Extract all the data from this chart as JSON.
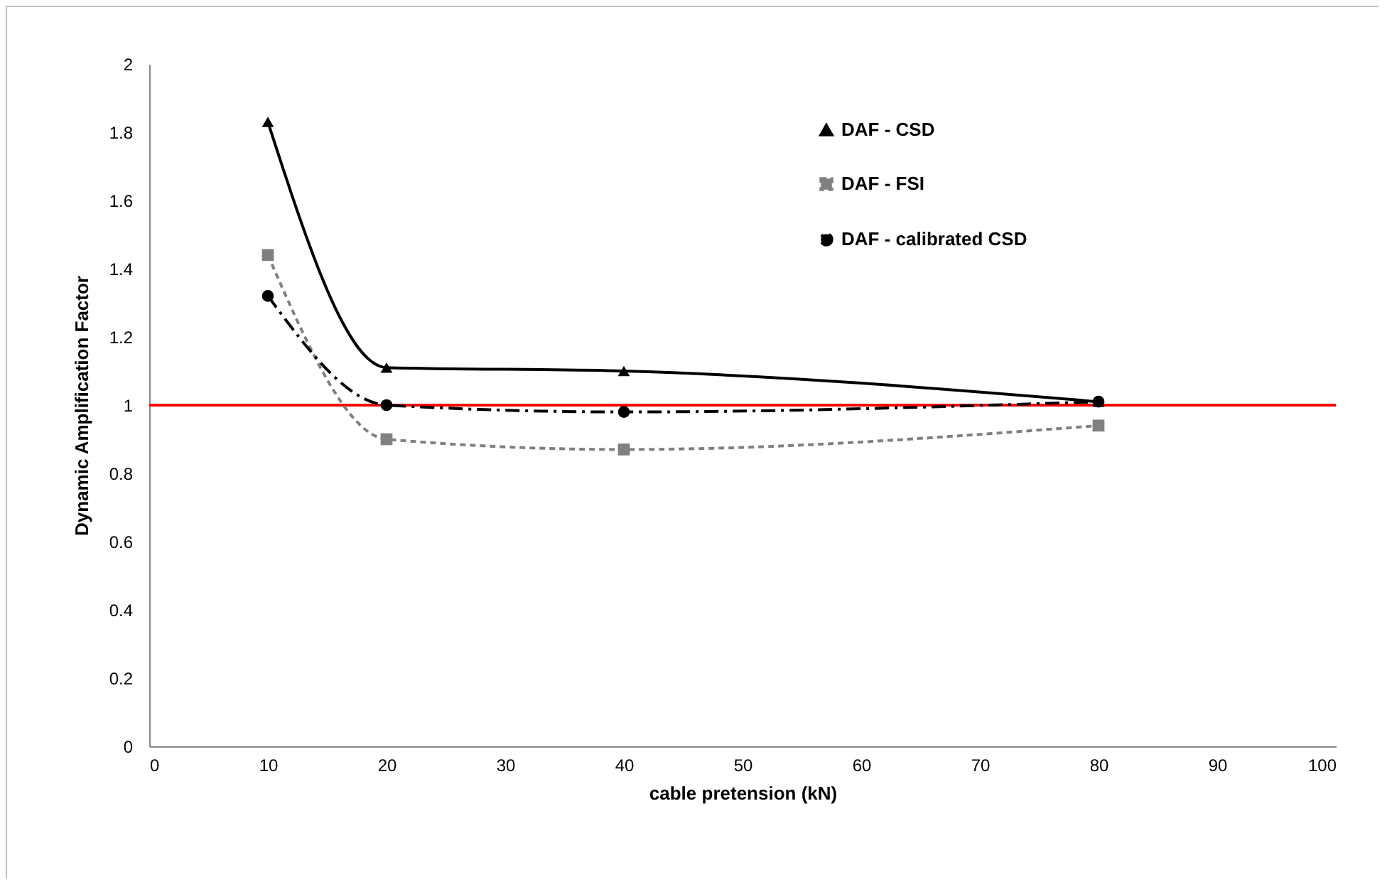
{
  "chart_data": {
    "type": "line",
    "xlabel": "cable pretension (kN)",
    "ylabel": "Dynamic Amplification Factor",
    "x": [
      10,
      20,
      40,
      80
    ],
    "series": [
      {
        "name": "DAF - CSD",
        "color": "#000000",
        "values": [
          1.83,
          1.11,
          1.1,
          1.01
        ],
        "marker": "triangle",
        "line_style": "solid"
      },
      {
        "name": "DAF - FSI",
        "color": "#808080",
        "values": [
          1.44,
          0.9,
          0.87,
          0.94
        ],
        "marker": "square",
        "line_style": "dotted"
      },
      {
        "name": "DAF - calibrated CSD",
        "color": "#000000",
        "values": [
          1.32,
          1.0,
          0.98,
          1.01
        ],
        "marker": "circle",
        "line_style": "dashed"
      }
    ],
    "xlim": [
      0,
      100
    ],
    "xticks": [
      0,
      10,
      20,
      30,
      40,
      50,
      60,
      70,
      80,
      90,
      100
    ],
    "ylim": [
      0,
      2
    ],
    "yticks": [
      0,
      0.2,
      0.4,
      0.6,
      0.8,
      1,
      1.2,
      1.4,
      1.6,
      1.8,
      2
    ],
    "ref_lines": [
      {
        "axis": "y",
        "value": 1,
        "color": "#ff0000"
      }
    ],
    "grid": false,
    "legend": "top right"
  }
}
